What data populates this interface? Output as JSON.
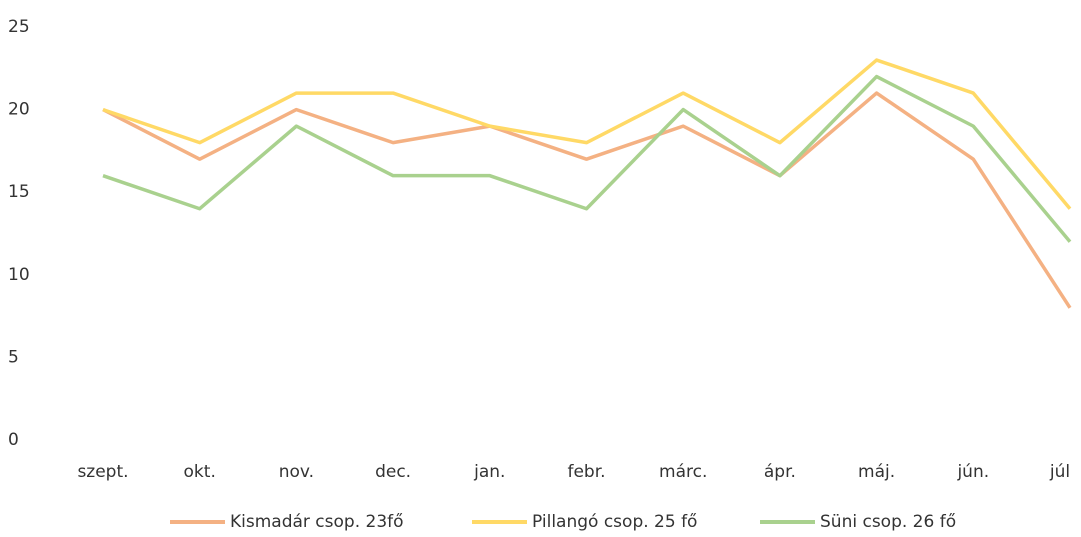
{
  "chart_data": {
    "type": "line",
    "categories": [
      "szept.",
      "okt.",
      "nov.",
      "dec.",
      "jan.",
      "febr.",
      "márc.",
      "ápr.",
      "máj.",
      "jún.",
      "júl"
    ],
    "series": [
      {
        "name": "Kismadár csop. 23fő",
        "color": "#f4b183",
        "values": [
          20,
          17,
          20,
          18,
          19,
          17,
          19,
          16,
          21,
          17,
          8
        ]
      },
      {
        "name": "Pillangó csop. 25 fő",
        "color": "#ffd966",
        "values": [
          20,
          18,
          21,
          21,
          19,
          18,
          21,
          18,
          23,
          21,
          14
        ]
      },
      {
        "name": "Süni csop. 26 fő",
        "color": "#a9d18e",
        "values": [
          16,
          14,
          19,
          16,
          16,
          14,
          20,
          16,
          22,
          19,
          12
        ]
      }
    ],
    "ylim": [
      0,
      25
    ],
    "yticks": [
      0,
      5,
      10,
      15,
      20,
      25
    ],
    "grid": false,
    "legend": "bottom"
  }
}
